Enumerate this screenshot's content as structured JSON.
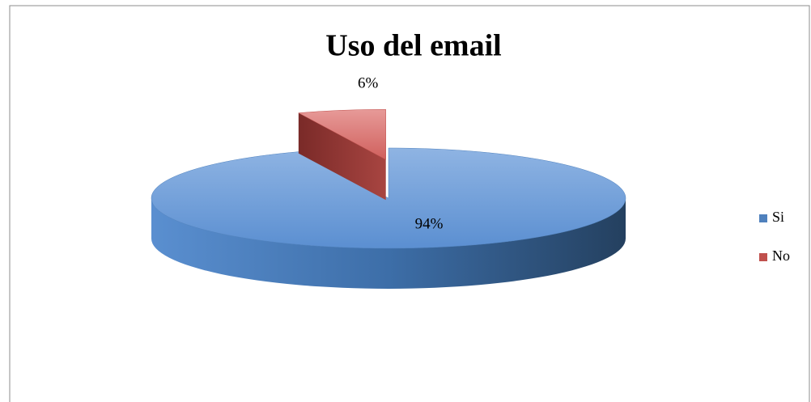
{
  "chart_data": {
    "type": "pie",
    "title": "Uso del email",
    "categories": [
      "Si",
      "No"
    ],
    "values": [
      94,
      6
    ],
    "value_labels": [
      "94%",
      "6%"
    ],
    "colors": [
      "#4f81bd",
      "#c0504d"
    ],
    "exploded": [
      false,
      true
    ],
    "legend": "right"
  }
}
